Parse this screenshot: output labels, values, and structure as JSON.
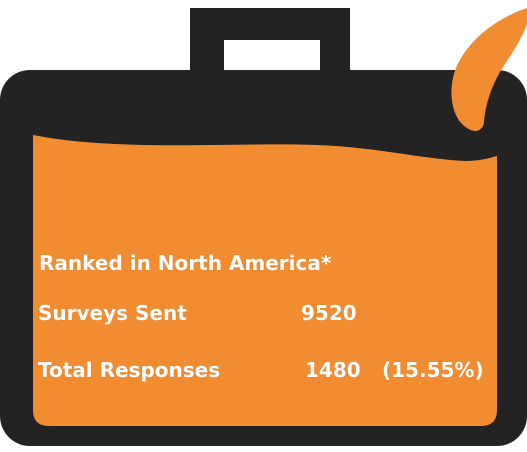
{
  "colors": {
    "case_dark": "#232323",
    "orange": "#f28c31",
    "text": "#ffffff",
    "background": "#ffffff"
  },
  "labels": {
    "ranked": "Ranked  in North America*",
    "surveys_sent_label": "Surveys Sent",
    "surveys_sent_value": "9520",
    "total_responses_label": "Total Responses",
    "total_responses_value": "1480",
    "total_responses_percent": "(15.55%)"
  },
  "icons": {
    "case": "briefcase-icon",
    "leaf": "leaf-icon"
  }
}
